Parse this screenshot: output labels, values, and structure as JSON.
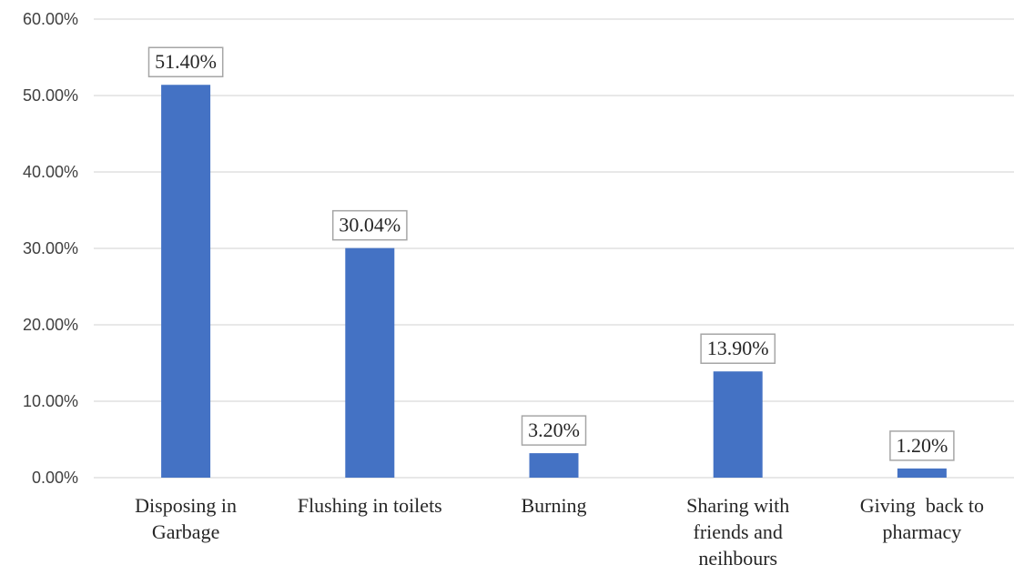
{
  "chart_data": {
    "type": "bar",
    "title": "",
    "xlabel": "",
    "ylabel": "",
    "categories": [
      [
        "Disposing in",
        "Garbage"
      ],
      [
        "Flushing in toilets"
      ],
      [
        "Burning"
      ],
      [
        "Sharing with",
        "friends and",
        "neihbours"
      ],
      [
        "Giving  back to",
        "pharmacy"
      ]
    ],
    "values": [
      51.4,
      30.04,
      3.2,
      13.9,
      1.2
    ],
    "data_labels": [
      "51.40%",
      "30.04%",
      "3.20%",
      "13.90%",
      "1.20%"
    ],
    "ylim": [
      0,
      60
    ],
    "yticks": [
      0,
      10,
      20,
      30,
      40,
      50,
      60
    ],
    "ytick_labels": [
      "0.00%",
      "10.00%",
      "20.00%",
      "30.00%",
      "40.00%",
      "50.00%",
      "60.00%"
    ],
    "grid": true,
    "legend": "none",
    "colors": {
      "bar": "#4472c4",
      "grid": "#d9d9d9",
      "label_border": "#a6a6a6"
    }
  }
}
